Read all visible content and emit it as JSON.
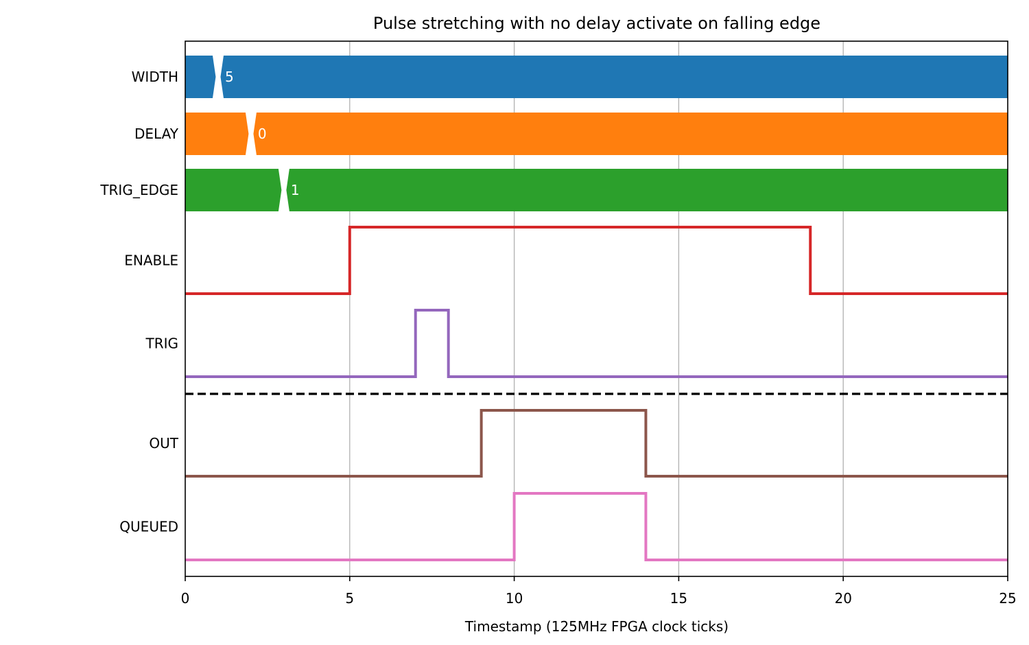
{
  "chart_data": {
    "type": "line",
    "title": "Pulse stretching with no delay activate on falling edge",
    "xlabel": "Timestamp (125MHz FPGA clock ticks)",
    "ylabel": "",
    "xlim": [
      0,
      25
    ],
    "xticks": [
      "0",
      "5",
      "10",
      "15",
      "20",
      "25"
    ],
    "grid": "vertical",
    "bus_signals": [
      {
        "name": "WIDTH",
        "color": "#1f77b4",
        "transition": 1,
        "value": "5"
      },
      {
        "name": "DELAY",
        "color": "#ff7f0e",
        "transition": 2,
        "value": "0"
      },
      {
        "name": "TRIG_EDGE",
        "color": "#2ca02c",
        "transition": 3,
        "value": "1"
      }
    ],
    "digital_signals": [
      {
        "name": "ENABLE",
        "color": "#d62728",
        "x": [
          0,
          5,
          19,
          25
        ],
        "values": [
          0,
          1,
          0,
          0
        ]
      },
      {
        "name": "TRIG",
        "color": "#9467bd",
        "x": [
          0,
          7,
          8,
          25
        ],
        "values": [
          0,
          1,
          0,
          0
        ]
      },
      {
        "name": "OUT",
        "color": "#8c564b",
        "x": [
          0,
          9,
          14,
          25
        ],
        "values": [
          0,
          1,
          0,
          0
        ]
      },
      {
        "name": "QUEUED",
        "color": "#e377c2",
        "x": [
          0,
          10,
          14,
          25
        ],
        "values": [
          0,
          1,
          0,
          0
        ]
      }
    ],
    "separator": {
      "after": "TRIG",
      "style": "dashed",
      "color": "#000000"
    }
  }
}
